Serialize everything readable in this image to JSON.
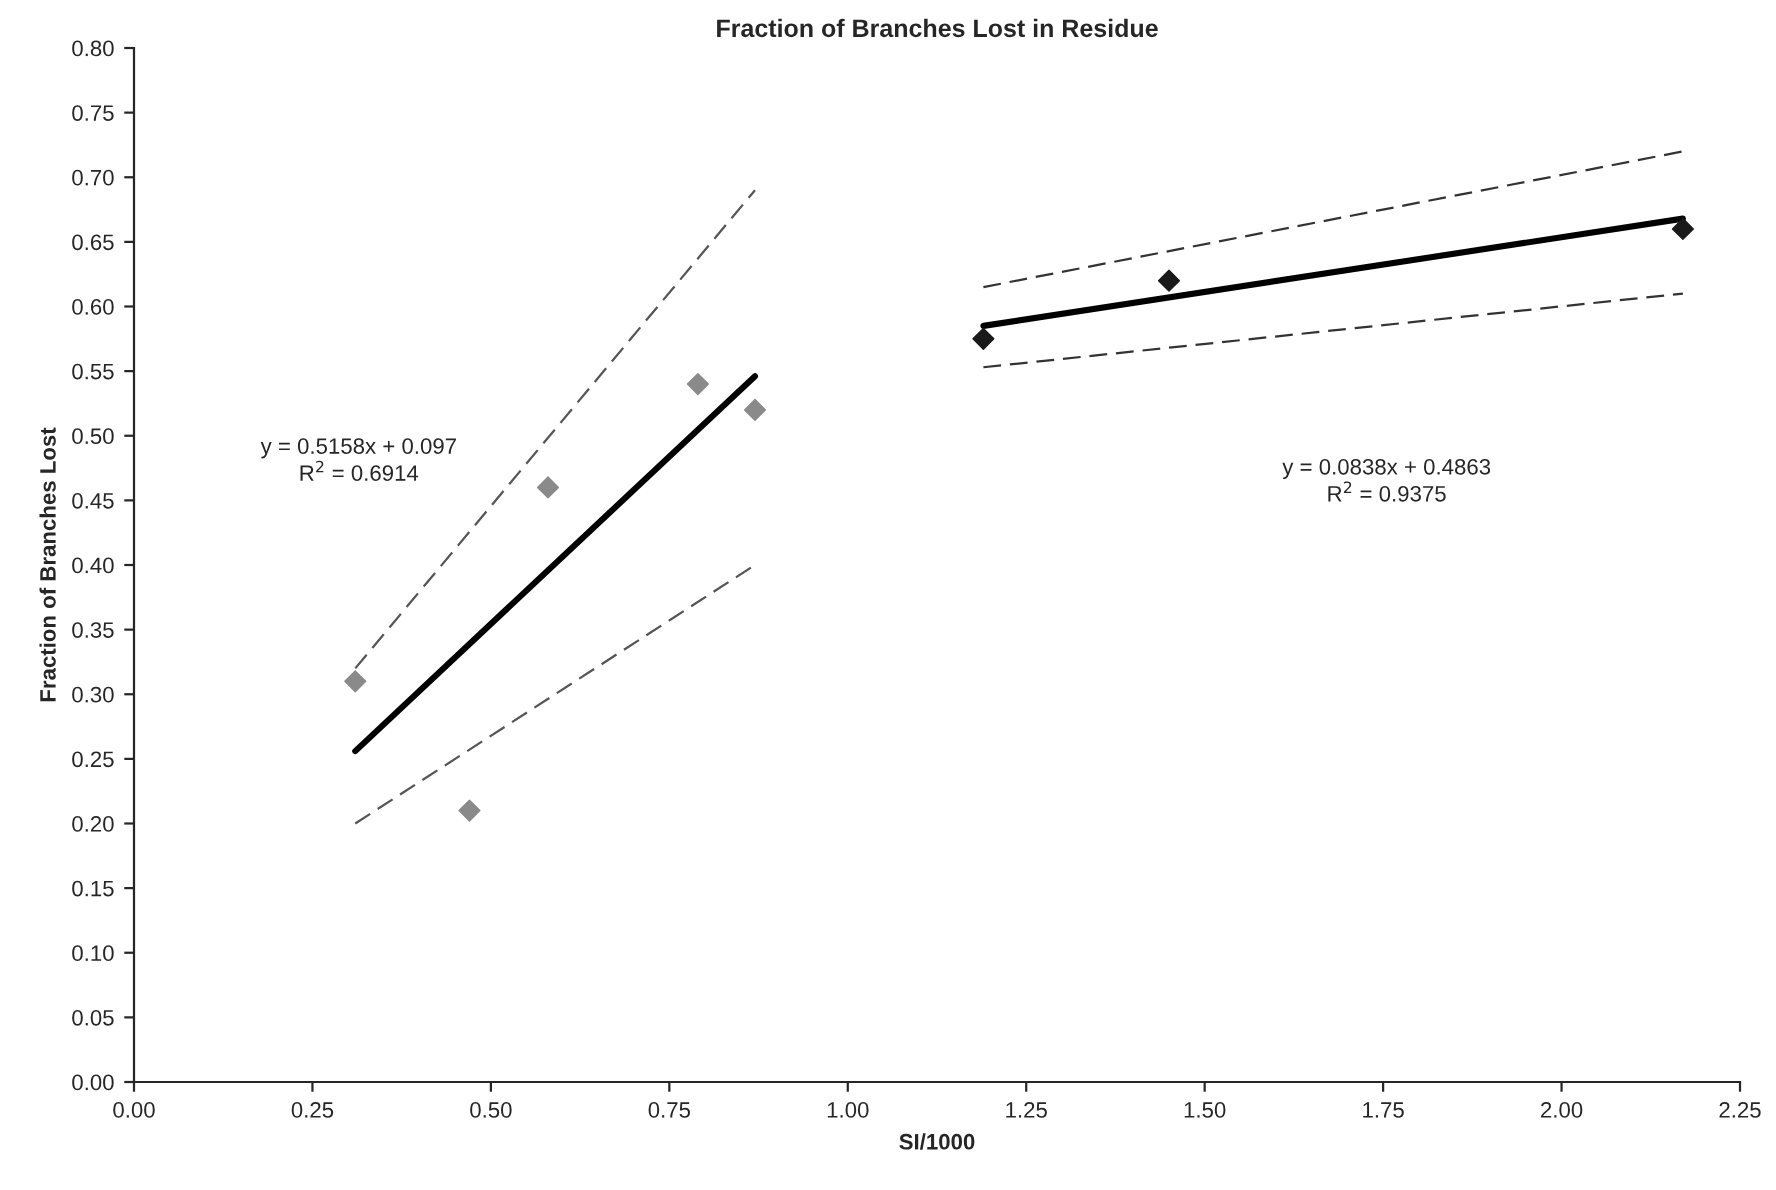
{
  "chart_data": {
    "type": "scatter",
    "title": "Fraction of Branches Lost in Residue",
    "xlabel": "SI/1000",
    "ylabel": "Fraction of Branches Lost",
    "xlim": [
      0,
      2.25
    ],
    "ylim": [
      0,
      0.8
    ],
    "xticks": [
      {
        "value": 0,
        "label": "0.00"
      },
      {
        "value": 0.25,
        "label": "0.25"
      },
      {
        "value": 0.5,
        "label": "0.50"
      },
      {
        "value": 0.75,
        "label": "0.75"
      },
      {
        "value": 1,
        "label": "1.00"
      },
      {
        "value": 1.25,
        "label": "1.25"
      },
      {
        "value": 1.5,
        "label": "1.50"
      },
      {
        "value": 1.75,
        "label": "1.75"
      },
      {
        "value": 2,
        "label": "2.00"
      },
      {
        "value": 2.25,
        "label": "2.25"
      }
    ],
    "yticks": [
      {
        "value": 0,
        "label": "0.00"
      },
      {
        "value": 0.05,
        "label": "0.05"
      },
      {
        "value": 0.1,
        "label": "0.10"
      },
      {
        "value": 0.15,
        "label": "0.15"
      },
      {
        "value": 0.2,
        "label": "0.20"
      },
      {
        "value": 0.25,
        "label": "0.25"
      },
      {
        "value": 0.3,
        "label": "0.30"
      },
      {
        "value": 0.35,
        "label": "0.35"
      },
      {
        "value": 0.4,
        "label": "0.40"
      },
      {
        "value": 0.45,
        "label": "0.45"
      },
      {
        "value": 0.5,
        "label": "0.50"
      },
      {
        "value": 0.55,
        "label": "0.55"
      },
      {
        "value": 0.6,
        "label": "0.60"
      },
      {
        "value": 0.65,
        "label": "0.65"
      },
      {
        "value": 0.7,
        "label": "0.70"
      },
      {
        "value": 0.75,
        "label": "0.75"
      },
      {
        "value": 0.8,
        "label": "0.80"
      }
    ],
    "grid": false,
    "legend": false,
    "series": [
      {
        "color": "#8a8a8a",
        "marker": "diamond",
        "x": [
          0.31,
          0.47,
          0.58,
          0.79,
          0.87
        ],
        "values": [
          0.31,
          0.21,
          0.46,
          0.54,
          0.52
        ]
      },
      {
        "color": "#1a1a1a",
        "marker": "diamond",
        "x": [
          1.19,
          1.45,
          2.17
        ],
        "values": [
          0.575,
          0.62,
          0.66
        ]
      },
      {
        "type": "line",
        "color": "#000000",
        "line_style": "solid",
        "x": [
          0.31,
          0.87
        ],
        "values": [
          0.256,
          0.546
        ]
      },
      {
        "type": "line",
        "color": "#000000",
        "line_style": "solid",
        "x": [
          1.19,
          2.17
        ],
        "values": [
          0.585,
          0.668
        ]
      },
      {
        "type": "line",
        "color": "#555555",
        "line_style": "dashed",
        "x": [
          0.31,
          0.87
        ],
        "values": [
          0.32,
          0.69
        ]
      },
      {
        "type": "line",
        "color": "#555555",
        "line_style": "dashed",
        "x": [
          0.31,
          0.87
        ],
        "values": [
          0.2,
          0.4
        ]
      },
      {
        "type": "line",
        "color": "#333333",
        "line_style": "dashed",
        "x": [
          1.19,
          2.17
        ],
        "values": [
          0.615,
          0.72
        ]
      },
      {
        "type": "line",
        "color": "#333333",
        "line_style": "dashed",
        "x": [
          1.19,
          2.17
        ],
        "values": [
          0.553,
          0.61
        ]
      }
    ],
    "annotations": [
      "y = 0.5158x + 0.097\nR$^{2}$ = 0.6914",
      "y = 0.0838x + 0.4863\nR$^{2}$ = 0.9375"
    ]
  }
}
